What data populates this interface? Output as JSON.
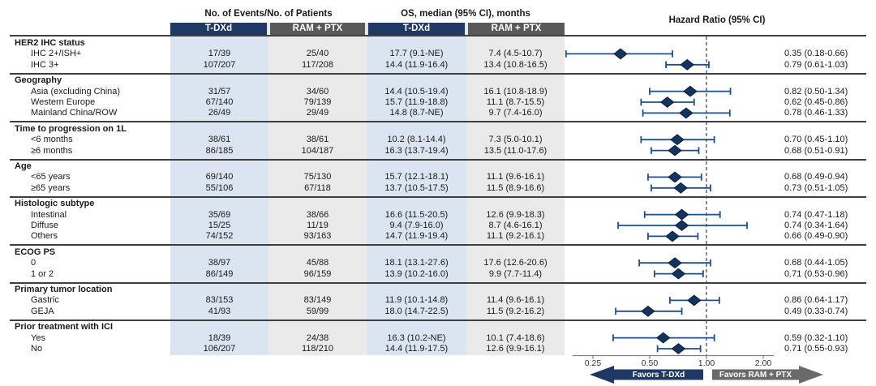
{
  "header": {
    "events_title": "No. of Events/No. of Patients",
    "os_title": "OS, median (95% CI), months",
    "hr_title": "Hazard Ratio (95% CI)",
    "arm_tdxd": "T-DXd",
    "arm_ram": "RAM + PTX"
  },
  "footer": {
    "favors_left": "Favors T-DXd",
    "favors_right": "Favors RAM + PTX"
  },
  "colors": {
    "navy_header": "#1f3864",
    "gray_header": "#595959",
    "band_blue": "#dbe5f1",
    "band_gray": "#eaeaea",
    "ci_line": "#1f4e8c",
    "diamond_fill": "#14345e",
    "diamond_edge": "#0a1f3c",
    "arrow_navy": "#1f3864",
    "arrow_gray": "#6a6a6a",
    "reference_line": "#4d4d4d"
  },
  "chart_data": {
    "type": "forest",
    "title": "Hazard Ratio (95% CI)",
    "x_axis": {
      "scale": "log2",
      "ticks": [
        0.25,
        0.5,
        1.0,
        2.0
      ],
      "tick_labels": [
        "0.25",
        "0.50",
        "1.00",
        "2.00"
      ],
      "reference": 1.0
    },
    "legend": {
      "favors_left": "Favors T-DXd",
      "favors_right": "Favors RAM + PTX"
    },
    "groups": [
      {
        "label": "HER2 IHC status",
        "rows": [
          {
            "label": "IHC 2+/ISH+",
            "events_tdxd": "17/39",
            "events_ram": "25/40",
            "os_tdxd": "17.7 (9.1-NE)",
            "os_ram": "7.4 (4.5-10.7)",
            "hr": 0.35,
            "ci_low": 0.18,
            "ci_high": 0.66,
            "hr_text": "0.35 (0.18-0.66)"
          },
          {
            "label": "IHC 3+",
            "events_tdxd": "107/207",
            "events_ram": "117/208",
            "os_tdxd": "14.4 (11.9-16.4)",
            "os_ram": "13.4 (10.8-16.5)",
            "hr": 0.79,
            "ci_low": 0.61,
            "ci_high": 1.03,
            "hr_text": "0.79 (0.61-1.03)"
          }
        ]
      },
      {
        "label": "Geography",
        "rows": [
          {
            "label": "Asia (excluding China)",
            "events_tdxd": "31/57",
            "events_ram": "34/60",
            "os_tdxd": "14.4 (10.5-19.4)",
            "os_ram": "16.1 (10.8-18.9)",
            "hr": 0.82,
            "ci_low": 0.5,
            "ci_high": 1.34,
            "hr_text": "0.82 (0.50-1.34)"
          },
          {
            "label": "Western Europe",
            "events_tdxd": "67/140",
            "events_ram": "79/139",
            "os_tdxd": "15.7 (11.9-18.8)",
            "os_ram": "11.1 (8.7-15.5)",
            "hr": 0.62,
            "ci_low": 0.45,
            "ci_high": 0.86,
            "hr_text": "0.62 (0.45-0.86)"
          },
          {
            "label": "Mainland China/ROW",
            "events_tdxd": "26/49",
            "events_ram": "29/49",
            "os_tdxd": "14.8 (8.7-NE)",
            "os_ram": "9.7 (7.4-16.0)",
            "hr": 0.78,
            "ci_low": 0.46,
            "ci_high": 1.33,
            "hr_text": "0.78 (0.46-1.33)"
          }
        ]
      },
      {
        "label": "Time to progression on 1L",
        "rows": [
          {
            "label": "<6 months",
            "events_tdxd": "38/61",
            "events_ram": "38/61",
            "os_tdxd": "10.2 (8.1-14.4)",
            "os_ram": "7.3 (5.0-10.1)",
            "hr": 0.7,
            "ci_low": 0.45,
            "ci_high": 1.1,
            "hr_text": "0.70 (0.45-1.10)"
          },
          {
            "label": "≥6 months",
            "events_tdxd": "86/185",
            "events_ram": "104/187",
            "os_tdxd": "16.3 (13.7-19.4)",
            "os_ram": "13.5 (11.0-17.6)",
            "hr": 0.68,
            "ci_low": 0.51,
            "ci_high": 0.91,
            "hr_text": "0.68 (0.51-0.91)"
          }
        ]
      },
      {
        "label": "Age",
        "rows": [
          {
            "label": "<65 years",
            "events_tdxd": "69/140",
            "events_ram": "75/130",
            "os_tdxd": "15.7 (12.1-18.1)",
            "os_ram": "11.1 (9.6-16.1)",
            "hr": 0.68,
            "ci_low": 0.49,
            "ci_high": 0.94,
            "hr_text": "0.68 (0.49-0.94)"
          },
          {
            "label": "≥65 years",
            "events_tdxd": "55/106",
            "events_ram": "67/118",
            "os_tdxd": "13.7 (10.5-17.5)",
            "os_ram": "11.5 (8.9-16.6)",
            "hr": 0.73,
            "ci_low": 0.51,
            "ci_high": 1.05,
            "hr_text": "0.73 (0.51-1.05)"
          }
        ]
      },
      {
        "label": "Histologic subtype",
        "rows": [
          {
            "label": "Intestinal",
            "events_tdxd": "35/69",
            "events_ram": "38/66",
            "os_tdxd": "16.6 (11.5-20.5)",
            "os_ram": "12.6 (9.9-18.3)",
            "hr": 0.74,
            "ci_low": 0.47,
            "ci_high": 1.18,
            "hr_text": "0.74 (0.47-1.18)"
          },
          {
            "label": "Diffuse",
            "events_tdxd": "15/25",
            "events_ram": "11/19",
            "os_tdxd": "9.4 (7.9-16.0)",
            "os_ram": "8.7 (4.6-16.1)",
            "hr": 0.74,
            "ci_low": 0.34,
            "ci_high": 1.64,
            "hr_text": "0.74 (0.34-1.64)"
          },
          {
            "label": "Others",
            "events_tdxd": "74/152",
            "events_ram": "93/163",
            "os_tdxd": "14.7 (11.9-19.4)",
            "os_ram": "11.1 (9.2-16.1)",
            "hr": 0.66,
            "ci_low": 0.49,
            "ci_high": 0.9,
            "hr_text": "0.66 (0.49-0.90)"
          }
        ]
      },
      {
        "label": "ECOG PS",
        "rows": [
          {
            "label": "0",
            "events_tdxd": "38/97",
            "events_ram": "45/88",
            "os_tdxd": "18.1 (13.1-27.6)",
            "os_ram": "17.6 (12.6-20.6)",
            "hr": 0.68,
            "ci_low": 0.44,
            "ci_high": 1.05,
            "hr_text": "0.68 (0.44-1.05)"
          },
          {
            "label": "1 or 2",
            "events_tdxd": "86/149",
            "events_ram": "96/159",
            "os_tdxd": "13.9 (10.2-16.0)",
            "os_ram": "9.9 (7.7-11.4)",
            "hr": 0.71,
            "ci_low": 0.53,
            "ci_high": 0.96,
            "hr_text": "0.71 (0.53-0.96)"
          }
        ]
      },
      {
        "label": "Primary tumor location",
        "rows": [
          {
            "label": "Gastric",
            "events_tdxd": "83/153",
            "events_ram": "83/149",
            "os_tdxd": "11.9 (10.1-14.8)",
            "os_ram": "11.4 (9.6-16.1)",
            "hr": 0.86,
            "ci_low": 0.64,
            "ci_high": 1.17,
            "hr_text": "0.86 (0.64-1.17)"
          },
          {
            "label": "GEJA",
            "events_tdxd": "41/93",
            "events_ram": "59/99",
            "os_tdxd": "18.0 (14.7-22.5)",
            "os_ram": "11.5 (9.2-16.2)",
            "hr": 0.49,
            "ci_low": 0.33,
            "ci_high": 0.74,
            "hr_text": "0.49 (0.33-0.74)"
          }
        ]
      },
      {
        "label": "Prior treatment with ICI",
        "rows": [
          {
            "label": "Yes",
            "events_tdxd": "18/39",
            "events_ram": "24/38",
            "os_tdxd": "16.3 (10.2-NE)",
            "os_ram": "10.1 (7.4-18.6)",
            "hr": 0.59,
            "ci_low": 0.32,
            "ci_high": 1.1,
            "hr_text": "0.59 (0.32-1.10)"
          },
          {
            "label": "No",
            "events_tdxd": "106/207",
            "events_ram": "118/210",
            "os_tdxd": "14.4 (11.9-17.5)",
            "os_ram": "12.6 (9.9-16.1)",
            "hr": 0.71,
            "ci_low": 0.55,
            "ci_high": 0.93,
            "hr_text": "0.71 (0.55-0.93)"
          }
        ]
      }
    ]
  }
}
